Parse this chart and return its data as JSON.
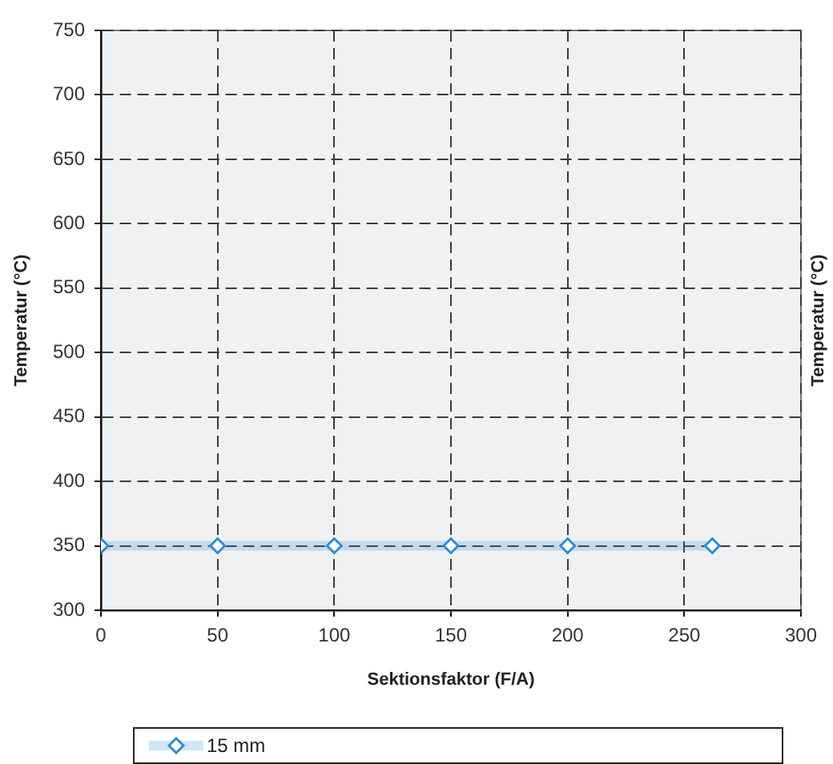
{
  "chart_data": {
    "type": "line",
    "xlabel": "Sektionsfaktor (F/A)",
    "ylabel": "Temperatur (°C)",
    "y2label": "Temperatur (°C)",
    "x": [
      0,
      50,
      100,
      150,
      200,
      262
    ],
    "series": [
      {
        "name": "15 mm",
        "color": "#2a8ad4",
        "values": [
          350,
          350,
          350,
          350,
          350,
          350
        ]
      }
    ],
    "xlim": [
      0,
      300
    ],
    "xticks": [
      0,
      50,
      100,
      150,
      200,
      250,
      300
    ],
    "ylim": [
      300,
      750
    ],
    "yticks": [
      300,
      350,
      400,
      450,
      500,
      550,
      600,
      650,
      700,
      750
    ],
    "grid": true,
    "legend": "bottom",
    "marker": "diamond",
    "line_style": "solid"
  }
}
